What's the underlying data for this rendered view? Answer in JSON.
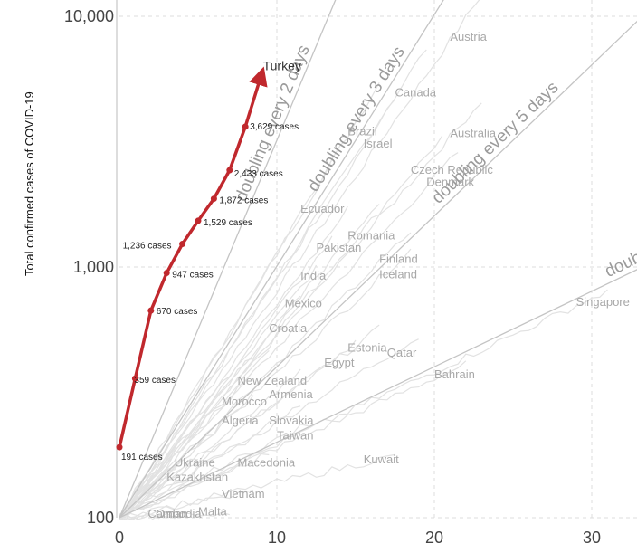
{
  "chart_data": {
    "type": "line",
    "ylabel": "Total confirmed cases of COVID-19",
    "y_scale": "log",
    "ylim": [
      100,
      10000
    ],
    "xlim": [
      0,
      32
    ],
    "y_ticks": [
      {
        "value": 100,
        "label": "100"
      },
      {
        "value": 1000,
        "label": "1,000"
      },
      {
        "value": 10000,
        "label": "10,000"
      }
    ],
    "x_ticks": [
      {
        "value": 0,
        "label": "0"
      },
      {
        "value": 10,
        "label": "10"
      },
      {
        "value": 20,
        "label": "20"
      },
      {
        "value": 30,
        "label": "30"
      }
    ],
    "grid": true,
    "highlight": {
      "name": "Turkey",
      "color": "#c0282d",
      "points": [
        {
          "x": 0,
          "y": 191,
          "label": "191 cases"
        },
        {
          "x": 1,
          "y": 359,
          "label": "359 cases"
        },
        {
          "x": 2,
          "y": 670,
          "label": "670 cases"
        },
        {
          "x": 3,
          "y": 947,
          "label": "947 cases"
        },
        {
          "x": 4,
          "y": 1236,
          "label": "1,236 cases"
        },
        {
          "x": 5,
          "y": 1529,
          "label": "1,529 cases"
        },
        {
          "x": 6,
          "y": 1872,
          "label": "1,872 cases"
        },
        {
          "x": 7,
          "y": 2433,
          "label": "2,433 cases"
        },
        {
          "x": 8,
          "y": 3629,
          "label": "3,629 cases"
        },
        {
          "x": 9,
          "y": 5800,
          "label": ""
        }
      ]
    },
    "doubling_lines": [
      {
        "label": "doubling every 2 days",
        "days": 2
      },
      {
        "label": "doubling every 3 days",
        "days": 3
      },
      {
        "label": "doubling every 5 days",
        "days": 5
      },
      {
        "label": "doubling",
        "days": 10
      }
    ],
    "other_countries": [
      {
        "name": "Austria",
        "x": 21,
        "y": 8000
      },
      {
        "name": "Canada",
        "x": 17.5,
        "y": 4800
      },
      {
        "name": "Brazil",
        "x": 14.5,
        "y": 3350
      },
      {
        "name": "Israel",
        "x": 15.5,
        "y": 3000
      },
      {
        "name": "Australia",
        "x": 21,
        "y": 3300
      },
      {
        "name": "Czech Republic",
        "x": 18.5,
        "y": 2350
      },
      {
        "name": "Denmark",
        "x": 19.5,
        "y": 2100
      },
      {
        "name": "Ecuador",
        "x": 11.5,
        "y": 1650
      },
      {
        "name": "Romania",
        "x": 14.5,
        "y": 1290
      },
      {
        "name": "Pakistan",
        "x": 12.5,
        "y": 1150
      },
      {
        "name": "Finland",
        "x": 16.5,
        "y": 1040
      },
      {
        "name": "Iceland",
        "x": 16.5,
        "y": 900
      },
      {
        "name": "India",
        "x": 11.5,
        "y": 890
      },
      {
        "name": "Mexico",
        "x": 10.5,
        "y": 690
      },
      {
        "name": "Croatia",
        "x": 9.5,
        "y": 550
      },
      {
        "name": "Estonia",
        "x": 14.5,
        "y": 460
      },
      {
        "name": "Qatar",
        "x": 17,
        "y": 440
      },
      {
        "name": "Egypt",
        "x": 13,
        "y": 400
      },
      {
        "name": "Bahrain",
        "x": 20,
        "y": 360
      },
      {
        "name": "New Zealand",
        "x": 7.5,
        "y": 340
      },
      {
        "name": "Armenia",
        "x": 9.5,
        "y": 300
      },
      {
        "name": "Morocco",
        "x": 6.5,
        "y": 280
      },
      {
        "name": "Algeria",
        "x": 6.5,
        "y": 235
      },
      {
        "name": "Slovakia",
        "x": 9.5,
        "y": 235
      },
      {
        "name": "Taiwan",
        "x": 10,
        "y": 205
      },
      {
        "name": "Kuwait",
        "x": 15.5,
        "y": 165
      },
      {
        "name": "Ukraine",
        "x": 3.5,
        "y": 160
      },
      {
        "name": "Macedonia",
        "x": 7.5,
        "y": 160
      },
      {
        "name": "Kazakhstan",
        "x": 3,
        "y": 140
      },
      {
        "name": "Vietnam",
        "x": 6.5,
        "y": 120
      },
      {
        "name": "Malta",
        "x": 5,
        "y": 102
      },
      {
        "name": "Oman",
        "x": 2.3,
        "y": 100
      },
      {
        "name": "Singapore",
        "x": 29,
        "y": 700
      },
      {
        "name": "Cambodia",
        "x": 1.8,
        "y": 100
      }
    ]
  }
}
